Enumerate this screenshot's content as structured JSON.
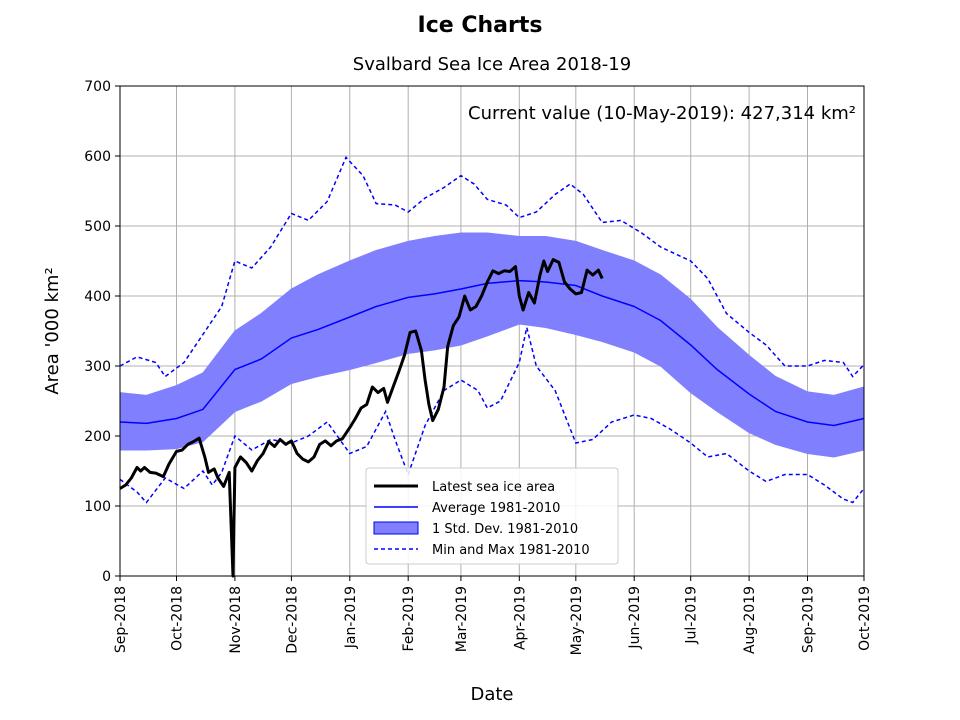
{
  "chart_data": {
    "type": "line",
    "suptitle": "Ice Charts",
    "title": "Svalbard Sea Ice Area 2018-19",
    "xlabel": "Date",
    "ylabel": "Area '000 km²",
    "annotation": "Current value (10-May-2019): 427,314 km²",
    "xlim": [
      "2018-09-01",
      "2019-10-01"
    ],
    "ylim": [
      0,
      700
    ],
    "yticks": [
      0,
      100,
      200,
      300,
      400,
      500,
      600,
      700
    ],
    "xtick_labels": [
      "Sep-2018",
      "Oct-2018",
      "Nov-2018",
      "Dec-2018",
      "Jan-2019",
      "Feb-2019",
      "Mar-2019",
      "Apr-2019",
      "May-2019",
      "Jun-2019",
      "Jul-2019",
      "Aug-2019",
      "Sep-2019",
      "Oct-2019"
    ],
    "grid": true,
    "legend_position": "lower center",
    "legend": [
      {
        "label": "Latest sea ice area",
        "kind": "thick-line"
      },
      {
        "label": "Average 1981-2010",
        "kind": "line"
      },
      {
        "label": "1 Std. Dev. 1981-2010",
        "kind": "band"
      },
      {
        "label": "Min and Max 1981-2010",
        "kind": "dashed"
      }
    ],
    "colors": {
      "latest": "#000000",
      "average": "#0000ff",
      "band_fill": "#8080ff",
      "band_edge": "#0000ff",
      "minmax": "#0000ff",
      "grid": "#b0b0b0"
    },
    "series": [
      {
        "name": "Latest sea ice area",
        "points": [
          [
            "2018-09-01",
            125
          ],
          [
            "2018-09-04",
            130
          ],
          [
            "2018-09-07",
            140
          ],
          [
            "2018-09-10",
            155
          ],
          [
            "2018-09-12",
            150
          ],
          [
            "2018-09-14",
            155
          ],
          [
            "2018-09-17",
            148
          ],
          [
            "2018-09-20",
            147
          ],
          [
            "2018-09-24",
            142
          ],
          [
            "2018-09-27",
            160
          ],
          [
            "2018-10-01",
            178
          ],
          [
            "2018-10-04",
            180
          ],
          [
            "2018-10-07",
            188
          ],
          [
            "2018-10-10",
            192
          ],
          [
            "2018-10-13",
            197
          ],
          [
            "2018-10-16",
            170
          ],
          [
            "2018-10-18",
            148
          ],
          [
            "2018-10-21",
            153
          ],
          [
            "2018-10-23",
            140
          ],
          [
            "2018-10-26",
            128
          ],
          [
            "2018-10-29",
            148
          ],
          [
            "2018-10-31",
            0
          ],
          [
            "2018-11-01",
            155
          ],
          [
            "2018-11-04",
            170
          ],
          [
            "2018-11-07",
            162
          ],
          [
            "2018-11-10",
            150
          ],
          [
            "2018-11-13",
            165
          ],
          [
            "2018-11-16",
            175
          ],
          [
            "2018-11-19",
            192
          ],
          [
            "2018-11-22",
            185
          ],
          [
            "2018-11-25",
            195
          ],
          [
            "2018-11-28",
            188
          ],
          [
            "2018-12-01",
            193
          ],
          [
            "2018-12-04",
            175
          ],
          [
            "2018-12-07",
            167
          ],
          [
            "2018-12-10",
            163
          ],
          [
            "2018-12-13",
            170
          ],
          [
            "2018-12-16",
            188
          ],
          [
            "2018-12-19",
            193
          ],
          [
            "2018-12-22",
            186
          ],
          [
            "2018-12-25",
            193
          ],
          [
            "2018-12-28",
            196
          ],
          [
            "2019-01-01",
            212
          ],
          [
            "2019-01-04",
            225
          ],
          [
            "2019-01-07",
            240
          ],
          [
            "2019-01-10",
            245
          ],
          [
            "2019-01-13",
            270
          ],
          [
            "2019-01-16",
            262
          ],
          [
            "2019-01-19",
            268
          ],
          [
            "2019-01-21",
            248
          ],
          [
            "2019-01-24",
            270
          ],
          [
            "2019-01-27",
            292
          ],
          [
            "2019-01-30",
            315
          ],
          [
            "2019-02-02",
            348
          ],
          [
            "2019-02-05",
            350
          ],
          [
            "2019-02-08",
            322
          ],
          [
            "2019-02-10",
            280
          ],
          [
            "2019-02-12",
            245
          ],
          [
            "2019-02-14",
            222
          ],
          [
            "2019-02-17",
            238
          ],
          [
            "2019-02-20",
            270
          ],
          [
            "2019-02-22",
            328
          ],
          [
            "2019-02-25",
            358
          ],
          [
            "2019-02-28",
            370
          ],
          [
            "2019-03-03",
            400
          ],
          [
            "2019-03-06",
            380
          ],
          [
            "2019-03-09",
            385
          ],
          [
            "2019-03-12",
            400
          ],
          [
            "2019-03-15",
            420
          ],
          [
            "2019-03-18",
            436
          ],
          [
            "2019-03-21",
            432
          ],
          [
            "2019-03-24",
            436
          ],
          [
            "2019-03-27",
            435
          ],
          [
            "2019-03-30",
            442
          ],
          [
            "2019-04-01",
            400
          ],
          [
            "2019-04-03",
            380
          ],
          [
            "2019-04-06",
            405
          ],
          [
            "2019-04-09",
            390
          ],
          [
            "2019-04-12",
            430
          ],
          [
            "2019-04-14",
            450
          ],
          [
            "2019-04-16",
            435
          ],
          [
            "2019-04-19",
            452
          ],
          [
            "2019-04-22",
            448
          ],
          [
            "2019-04-25",
            420
          ],
          [
            "2019-04-28",
            410
          ],
          [
            "2019-05-01",
            403
          ],
          [
            "2019-05-04",
            405
          ],
          [
            "2019-05-07",
            437
          ],
          [
            "2019-05-10",
            430
          ],
          [
            "2019-05-13",
            437
          ],
          [
            "2019-05-15",
            425
          ]
        ]
      },
      {
        "name": "Average 1981-2010",
        "points": [
          [
            "2018-09-01",
            220
          ],
          [
            "2018-09-15",
            218
          ],
          [
            "2018-10-01",
            225
          ],
          [
            "2018-10-15",
            238
          ],
          [
            "2018-11-01",
            295
          ],
          [
            "2018-11-15",
            310
          ],
          [
            "2018-12-01",
            340
          ],
          [
            "2018-12-15",
            352
          ],
          [
            "2019-01-01",
            370
          ],
          [
            "2019-01-15",
            385
          ],
          [
            "2019-02-01",
            398
          ],
          [
            "2019-02-15",
            403
          ],
          [
            "2019-03-01",
            410
          ],
          [
            "2019-03-15",
            418
          ],
          [
            "2019-04-01",
            422
          ],
          [
            "2019-04-15",
            420
          ],
          [
            "2019-05-01",
            415
          ],
          [
            "2019-05-15",
            400
          ],
          [
            "2019-06-01",
            385
          ],
          [
            "2019-06-15",
            365
          ],
          [
            "2019-07-01",
            330
          ],
          [
            "2019-07-15",
            295
          ],
          [
            "2019-08-01",
            260
          ],
          [
            "2019-08-15",
            235
          ],
          [
            "2019-09-01",
            220
          ],
          [
            "2019-09-15",
            215
          ],
          [
            "2019-10-01",
            225
          ]
        ]
      },
      {
        "name": "1 Std. Dev. 1981-2010",
        "upper": [
          [
            "2018-09-01",
            262
          ],
          [
            "2018-09-15",
            258
          ],
          [
            "2018-10-01",
            272
          ],
          [
            "2018-10-15",
            290
          ],
          [
            "2018-11-01",
            350
          ],
          [
            "2018-11-15",
            375
          ],
          [
            "2018-12-01",
            410
          ],
          [
            "2018-12-15",
            430
          ],
          [
            "2019-01-01",
            450
          ],
          [
            "2019-01-15",
            465
          ],
          [
            "2019-02-01",
            478
          ],
          [
            "2019-02-15",
            485
          ],
          [
            "2019-03-01",
            490
          ],
          [
            "2019-03-15",
            490
          ],
          [
            "2019-04-01",
            485
          ],
          [
            "2019-04-15",
            485
          ],
          [
            "2019-05-01",
            478
          ],
          [
            "2019-05-15",
            465
          ],
          [
            "2019-06-01",
            450
          ],
          [
            "2019-06-15",
            430
          ],
          [
            "2019-07-01",
            395
          ],
          [
            "2019-07-15",
            355
          ],
          [
            "2019-08-01",
            315
          ],
          [
            "2019-08-15",
            285
          ],
          [
            "2019-09-01",
            263
          ],
          [
            "2019-09-15",
            258
          ],
          [
            "2019-10-01",
            270
          ]
        ],
        "lower": [
          [
            "2018-09-01",
            180
          ],
          [
            "2018-09-15",
            180
          ],
          [
            "2018-10-01",
            182
          ],
          [
            "2018-10-15",
            192
          ],
          [
            "2018-11-01",
            235
          ],
          [
            "2018-11-15",
            250
          ],
          [
            "2018-12-01",
            275
          ],
          [
            "2018-12-15",
            285
          ],
          [
            "2019-01-01",
            295
          ],
          [
            "2019-01-15",
            305
          ],
          [
            "2019-02-01",
            318
          ],
          [
            "2019-02-15",
            323
          ],
          [
            "2019-03-01",
            330
          ],
          [
            "2019-03-15",
            343
          ],
          [
            "2019-04-01",
            360
          ],
          [
            "2019-04-15",
            355
          ],
          [
            "2019-05-01",
            345
          ],
          [
            "2019-05-15",
            335
          ],
          [
            "2019-06-01",
            320
          ],
          [
            "2019-06-15",
            300
          ],
          [
            "2019-07-01",
            262
          ],
          [
            "2019-07-15",
            235
          ],
          [
            "2019-08-01",
            205
          ],
          [
            "2019-08-15",
            188
          ],
          [
            "2019-09-01",
            175
          ],
          [
            "2019-09-15",
            170
          ],
          [
            "2019-10-01",
            180
          ]
        ]
      },
      {
        "name": "Min and Max 1981-2010",
        "max": [
          [
            "2018-09-01",
            300
          ],
          [
            "2018-09-10",
            313
          ],
          [
            "2018-09-20",
            305
          ],
          [
            "2018-09-25",
            285
          ],
          [
            "2018-10-05",
            305
          ],
          [
            "2018-10-15",
            345
          ],
          [
            "2018-10-25",
            385
          ],
          [
            "2018-11-01",
            450
          ],
          [
            "2018-11-10",
            440
          ],
          [
            "2018-11-20",
            470
          ],
          [
            "2018-12-01",
            518
          ],
          [
            "2018-12-10",
            508
          ],
          [
            "2018-12-20",
            535
          ],
          [
            "2018-12-30",
            598
          ],
          [
            "2019-01-08",
            572
          ],
          [
            "2019-01-15",
            532
          ],
          [
            "2019-01-25",
            530
          ],
          [
            "2019-02-01",
            520
          ],
          [
            "2019-02-10",
            540
          ],
          [
            "2019-02-20",
            555
          ],
          [
            "2019-03-01",
            572
          ],
          [
            "2019-03-08",
            560
          ],
          [
            "2019-03-15",
            538
          ],
          [
            "2019-03-25",
            530
          ],
          [
            "2019-04-01",
            512
          ],
          [
            "2019-04-10",
            520
          ],
          [
            "2019-04-20",
            545
          ],
          [
            "2019-04-28",
            560
          ],
          [
            "2019-05-05",
            545
          ],
          [
            "2019-05-15",
            505
          ],
          [
            "2019-05-25",
            508
          ],
          [
            "2019-06-05",
            490
          ],
          [
            "2019-06-15",
            470
          ],
          [
            "2019-07-01",
            450
          ],
          [
            "2019-07-10",
            425
          ],
          [
            "2019-07-20",
            375
          ],
          [
            "2019-08-01",
            348
          ],
          [
            "2019-08-10",
            330
          ],
          [
            "2019-08-20",
            300
          ],
          [
            "2019-09-01",
            300
          ],
          [
            "2019-09-10",
            308
          ],
          [
            "2019-09-20",
            305
          ],
          [
            "2019-09-25",
            285
          ],
          [
            "2019-10-01",
            302
          ]
        ],
        "min": [
          [
            "2018-09-01",
            138
          ],
          [
            "2018-09-10",
            120
          ],
          [
            "2018-09-15",
            105
          ],
          [
            "2018-09-25",
            140
          ],
          [
            "2018-10-05",
            125
          ],
          [
            "2018-10-15",
            150
          ],
          [
            "2018-10-20",
            130
          ],
          [
            "2018-10-25",
            148
          ],
          [
            "2018-11-01",
            200
          ],
          [
            "2018-11-10",
            180
          ],
          [
            "2018-11-20",
            195
          ],
          [
            "2018-12-01",
            190
          ],
          [
            "2018-12-10",
            200
          ],
          [
            "2018-12-20",
            220
          ],
          [
            "2019-01-01",
            175
          ],
          [
            "2019-01-10",
            185
          ],
          [
            "2019-01-20",
            235
          ],
          [
            "2019-01-25",
            195
          ],
          [
            "2019-02-01",
            145
          ],
          [
            "2019-02-10",
            215
          ],
          [
            "2019-02-20",
            265
          ],
          [
            "2019-03-01",
            280
          ],
          [
            "2019-03-10",
            265
          ],
          [
            "2019-03-15",
            240
          ],
          [
            "2019-03-22",
            250
          ],
          [
            "2019-04-01",
            305
          ],
          [
            "2019-04-05",
            355
          ],
          [
            "2019-04-10",
            300
          ],
          [
            "2019-04-20",
            265
          ],
          [
            "2019-05-01",
            190
          ],
          [
            "2019-05-10",
            195
          ],
          [
            "2019-05-20",
            220
          ],
          [
            "2019-06-01",
            230
          ],
          [
            "2019-06-10",
            225
          ],
          [
            "2019-06-20",
            210
          ],
          [
            "2019-07-01",
            190
          ],
          [
            "2019-07-10",
            170
          ],
          [
            "2019-07-20",
            175
          ],
          [
            "2019-08-01",
            150
          ],
          [
            "2019-08-10",
            135
          ],
          [
            "2019-08-20",
            145
          ],
          [
            "2019-09-01",
            145
          ],
          [
            "2019-09-10",
            130
          ],
          [
            "2019-09-20",
            110
          ],
          [
            "2019-09-25",
            105
          ],
          [
            "2019-10-01",
            125
          ]
        ]
      }
    ]
  }
}
